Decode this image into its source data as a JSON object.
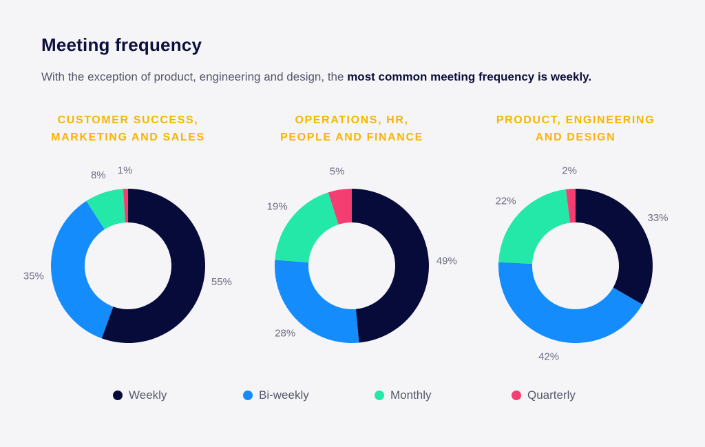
{
  "header": {
    "title": "Meeting frequency",
    "subtitle_pre": "With the exception of product, engineering and design, the ",
    "subtitle_bold": "most common meeting frequency is weekly."
  },
  "colors": {
    "weekly": "#070b3a",
    "biweekly": "#158cfb",
    "monthly": "#24e8a8",
    "quarterly": "#f43e72",
    "heading": "#f7b500"
  },
  "legend": [
    {
      "label": "Weekly",
      "color": "#070b3a"
    },
    {
      "label": "Bi-weekly",
      "color": "#158cfb"
    },
    {
      "label": "Monthly",
      "color": "#24e8a8"
    },
    {
      "label": "Quarterly",
      "color": "#f43e72"
    }
  ],
  "chart_data": [
    {
      "type": "pie",
      "style": "donut",
      "title_lines": [
        "CUSTOMER SUCCESS,",
        "MARKETING AND SALES"
      ],
      "categories": [
        "Weekly",
        "Bi-weekly",
        "Monthly",
        "Quarterly"
      ],
      "values": [
        55,
        35,
        8,
        1
      ],
      "labels": [
        "55%",
        "35%",
        "8%",
        "1%"
      ]
    },
    {
      "type": "pie",
      "style": "donut",
      "title_lines": [
        "OPERATIONS, HR,",
        "PEOPLE AND FINANCE"
      ],
      "categories": [
        "Weekly",
        "Bi-weekly",
        "Monthly",
        "Quarterly"
      ],
      "values": [
        49,
        28,
        19,
        5
      ],
      "labels": [
        "49%",
        "28%",
        "19%",
        "5%"
      ]
    },
    {
      "type": "pie",
      "style": "donut",
      "title_lines": [
        "PRODUCT, ENGINEERING",
        "AND DESIGN"
      ],
      "categories": [
        "Weekly",
        "Bi-weekly",
        "Monthly",
        "Quarterly"
      ],
      "values": [
        33,
        42,
        22,
        2
      ],
      "labels": [
        "33%",
        "42%",
        "22%",
        "2%"
      ]
    }
  ]
}
